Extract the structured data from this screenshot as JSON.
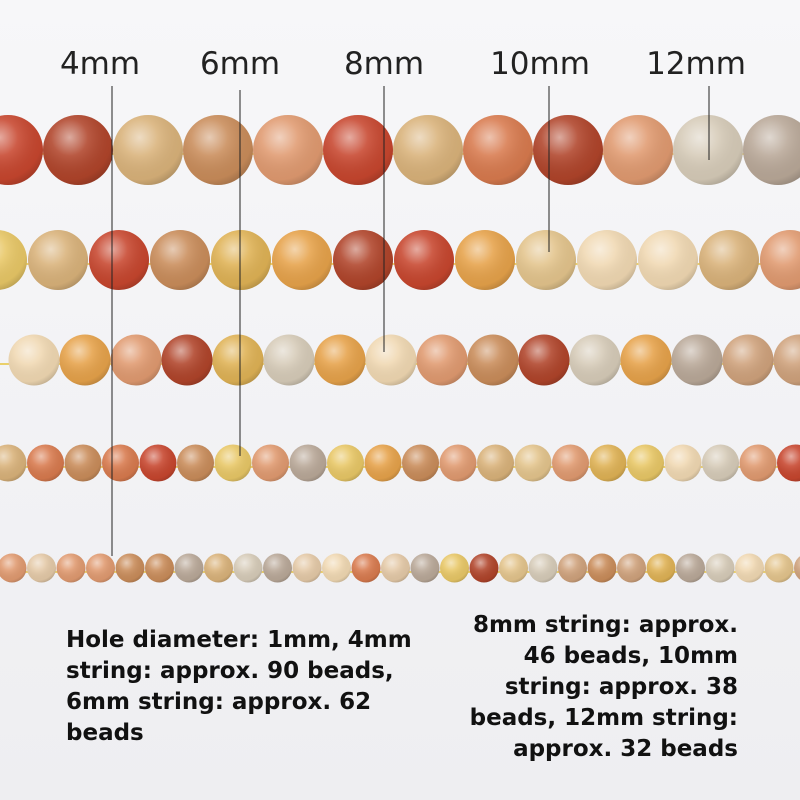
{
  "size_labels": [
    "4mm",
    "6mm",
    "8mm",
    "10mm",
    "12mm"
  ],
  "left_text": [
    "Hole diameter: 1mm, 4mm",
    "string: approx. 90 beads,",
    "6mm string: approx. 62",
    "beads"
  ],
  "right_text": [
    "8mm string: approx.",
    "46 beads, 10mm",
    "string: approx. 38",
    "beads, 12mm string:",
    "approx. 32 beads"
  ]
}
